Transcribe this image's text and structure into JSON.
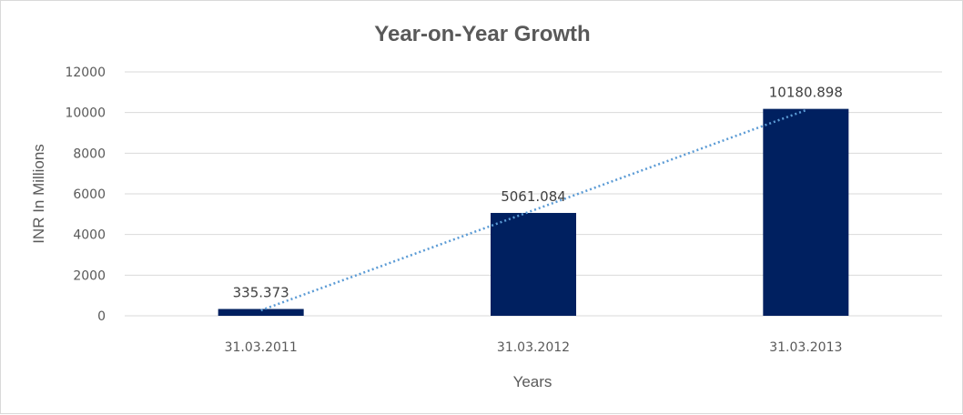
{
  "chart_data": {
    "type": "bar",
    "title": "Year-on-Year Growth",
    "xlabel": "Years",
    "ylabel": "INR In Millions",
    "categories": [
      "31.03.2011",
      "31.03.2012",
      "31.03.2013"
    ],
    "values": [
      335.373,
      5061.084,
      10180.898
    ],
    "data_labels": [
      "335.373",
      "5061.084",
      "10180.898"
    ],
    "ylim": [
      0,
      12000
    ],
    "yticks": [
      "0",
      "2000",
      "4000",
      "6000",
      "8000",
      "10000",
      "12000"
    ],
    "grid": true,
    "trendline": "linear",
    "bar_color": "#002060",
    "trendline_color": "#5b9bd5"
  }
}
